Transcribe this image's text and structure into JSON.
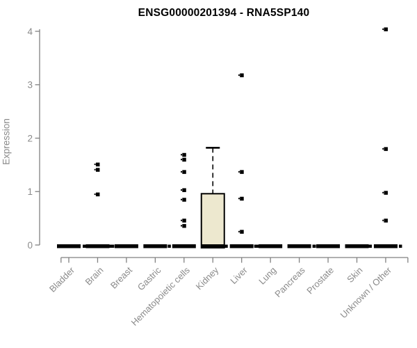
{
  "chart_data": {
    "type": "box",
    "title": "ENSG00000201394 - RNA5SP140",
    "ylabel": "Expression",
    "xlabel": "",
    "ylim": [
      0,
      4
    ],
    "yticks": [
      0,
      1,
      2,
      3,
      4
    ],
    "grid": false,
    "legend": "none",
    "categories": [
      "Bladder",
      "Brain",
      "Breast",
      "Gastric",
      "Hematopoietic cells",
      "Kidney",
      "Liver",
      "Lung",
      "Pancreas",
      "Prostate",
      "Skin",
      "Unknown / Other"
    ],
    "boxes": [
      {
        "category": "Bladder",
        "median": 0,
        "q1": 0,
        "q3": 0,
        "whisker_low": 0,
        "whisker_high": 0,
        "zero_cluster": true,
        "outliers": []
      },
      {
        "category": "Brain",
        "median": 0,
        "q1": 0,
        "q3": 0,
        "whisker_low": 0,
        "whisker_high": 0,
        "zero_cluster": true,
        "outliers": [
          1.51,
          1.41,
          0.95
        ]
      },
      {
        "category": "Breast",
        "median": 0,
        "q1": 0,
        "q3": 0,
        "whisker_low": 0,
        "whisker_high": 0,
        "zero_cluster": true,
        "outliers": []
      },
      {
        "category": "Gastric",
        "median": 0,
        "q1": 0,
        "q3": 0,
        "whisker_low": 0,
        "whisker_high": 0,
        "zero_cluster": true,
        "outliers": []
      },
      {
        "category": "Hematopoietic cells",
        "median": 0,
        "q1": 0,
        "q3": 0,
        "whisker_low": 0,
        "whisker_high": 0,
        "zero_cluster": true,
        "outliers": [
          1.69,
          1.6,
          1.37,
          1.03,
          0.85,
          0.46,
          0.36
        ]
      },
      {
        "category": "Kidney",
        "median": 0,
        "q1": 0,
        "q3": 0.96,
        "whisker_low": 0,
        "whisker_high": 1.82,
        "zero_cluster": true,
        "outliers": []
      },
      {
        "category": "Liver",
        "median": 0,
        "q1": 0,
        "q3": 0,
        "whisker_low": 0,
        "whisker_high": 0,
        "zero_cluster": true,
        "outliers": [
          3.18,
          1.37,
          0.87,
          0.25
        ]
      },
      {
        "category": "Lung",
        "median": 0,
        "q1": 0,
        "q3": 0,
        "whisker_low": 0,
        "whisker_high": 0,
        "zero_cluster": true,
        "outliers": []
      },
      {
        "category": "Pancreas",
        "median": 0,
        "q1": 0,
        "q3": 0,
        "whisker_low": 0,
        "whisker_high": 0,
        "zero_cluster": true,
        "outliers": []
      },
      {
        "category": "Prostate",
        "median": 0,
        "q1": 0,
        "q3": 0,
        "whisker_low": 0,
        "whisker_high": 0,
        "zero_cluster": true,
        "outliers": []
      },
      {
        "category": "Skin",
        "median": 0,
        "q1": 0,
        "q3": 0,
        "whisker_low": 0,
        "whisker_high": 0,
        "zero_cluster": true,
        "outliers": []
      },
      {
        "category": "Unknown / Other",
        "median": 0,
        "q1": 0,
        "q3": 0,
        "whisker_low": 0,
        "whisker_high": 0,
        "zero_cluster": true,
        "outliers": [
          4.04,
          1.8,
          0.98,
          0.46
        ]
      }
    ],
    "colors": {
      "box_fill": "#EDE8CF",
      "box_stroke": "#000000",
      "point": "#000000",
      "axis": "#818181",
      "tick_label": "#8a8a8a",
      "title": "#000000"
    }
  }
}
